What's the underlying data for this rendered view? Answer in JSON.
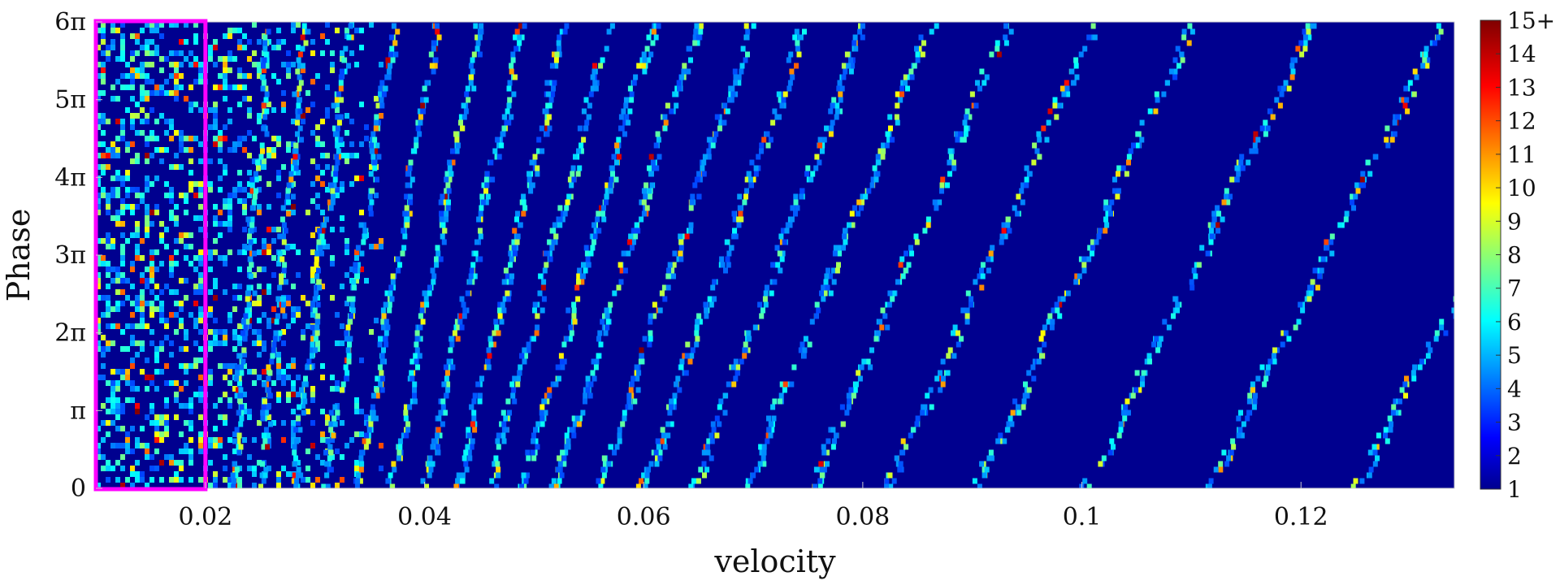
{
  "chart_data": {
    "type": "heatmap",
    "title": "",
    "xlabel": "velocity",
    "ylabel": "Phase",
    "xlim": [
      0.01,
      0.134
    ],
    "ylim": [
      0,
      6
    ],
    "y_unit": "pi",
    "x_ticks": [
      0.02,
      0.04,
      0.06,
      0.08,
      0.1,
      0.12
    ],
    "x_tick_labels": [
      "0.02",
      "0.04",
      "0.06",
      "0.08",
      "0.1",
      "0.12"
    ],
    "y_ticks": [
      0,
      1,
      2,
      3,
      4,
      5,
      6
    ],
    "y_tick_labels": [
      "0",
      "π",
      "2π",
      "3π",
      "4π",
      "5π",
      "6π"
    ],
    "colorbar": {
      "colormap": "jet",
      "range": [
        1,
        15
      ],
      "ticks": [
        1,
        2,
        3,
        4,
        5,
        6,
        7,
        8,
        9,
        10,
        11,
        12,
        13,
        14,
        15
      ],
      "tick_labels": [
        "1",
        "2",
        "3",
        "4",
        "5",
        "6",
        "7",
        "8",
        "9",
        "10",
        "11",
        "12",
        "13",
        "14",
        "15+"
      ]
    },
    "background_color": "#00008f",
    "highlight_box": {
      "x_range": [
        0.01,
        0.02
      ],
      "y_range": [
        0,
        6
      ],
      "color": "#ff00ff"
    },
    "band_pattern": "diagonal streaks of increasing spacing and slope with velocity; dense irregular speckle at low velocity (~0.01–0.035), distinct tilted bands beyond ~0.04, band intensity mostly 3–9 with sparse peaks up to 15",
    "band_origins_at_phase_0": [
      0.0225,
      0.025,
      0.028,
      0.031,
      0.034,
      0.037,
      0.04,
      0.043,
      0.046,
      0.049,
      0.052,
      0.056,
      0.06,
      0.0645,
      0.0695,
      0.0755,
      0.0825,
      0.0905,
      0.1005,
      0.1115,
      0.125
    ]
  }
}
